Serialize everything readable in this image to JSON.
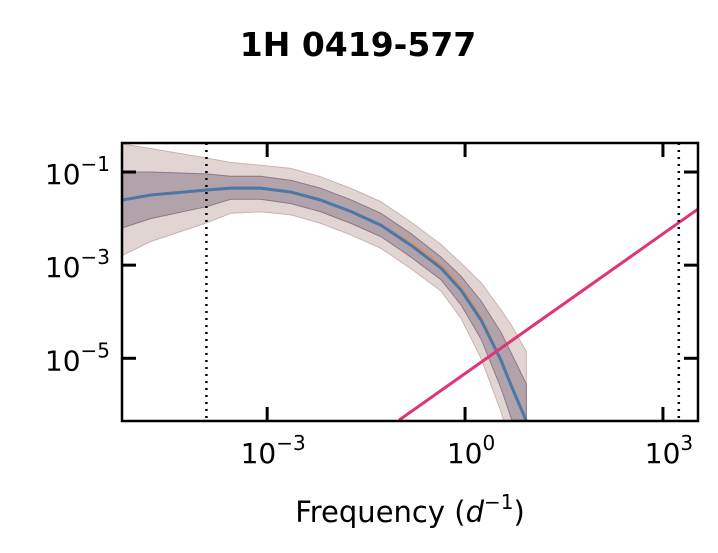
{
  "chart_data": {
    "type": "line",
    "title": "1H 0419-577",
    "xlabel": [
      "Frequency (",
      "d",
      "−1",
      ")"
    ],
    "xscale": "log",
    "yscale": "log",
    "xlim": [
      6.3e-06,
      3400
    ],
    "ylim": [
      4.5e-07,
      0.42
    ],
    "xticks": [
      {
        "value": 0.001,
        "label": "10",
        "exponent": "−3"
      },
      {
        "value": 1,
        "label": "10",
        "exponent": "0"
      },
      {
        "value": 1000,
        "label": "10",
        "exponent": "3"
      }
    ],
    "yticks": [
      {
        "value": 1e-05,
        "label": "10",
        "exponent": "−5"
      },
      {
        "value": 0.001,
        "label": "10",
        "exponent": "−3"
      },
      {
        "value": 0.1,
        "label": "10",
        "exponent": "−1"
      }
    ],
    "x": [
      6.3e-06,
      1.7e-05,
      0.00012,
      0.00028,
      0.00079,
      0.0023,
      0.0065,
      0.019,
      0.053,
      0.15,
      0.43,
      0.87,
      1.75,
      3.5,
      5.0,
      8.5
    ],
    "bands": [
      {
        "color": "#c8b3b1",
        "upper": [
          0.4,
          0.32,
          0.2,
          0.16,
          0.14,
          0.12,
          0.079,
          0.044,
          0.023,
          0.0085,
          0.0028,
          0.0011,
          0.00042,
          0.00011,
          5.2e-05,
          1.4e-05
        ],
        "lower": [
          0.0016,
          0.0032,
          0.0081,
          0.013,
          0.014,
          0.012,
          0.0079,
          0.0044,
          0.0023,
          0.00085,
          0.00028,
          7.2e-05,
          1e-05,
          7.2e-07,
          1.3e-07,
          1.4e-08
        ]
      },
      {
        "color": "#8d7886",
        "upper": [
          0.1,
          0.1,
          0.091,
          0.081,
          0.081,
          0.066,
          0.045,
          0.025,
          0.013,
          0.0048,
          0.0015,
          0.00058,
          0.00017,
          3.6e-05,
          1.3e-05,
          2.8e-06
        ],
        "lower": [
          0.0063,
          0.01,
          0.018,
          0.026,
          0.026,
          0.021,
          0.014,
          0.0078,
          0.0041,
          0.0015,
          0.00049,
          0.00014,
          2.6e-05,
          2.3e-06,
          5.2e-07,
          7.1e-08
        ]
      }
    ],
    "series": [
      {
        "color": "#d9915a",
        "values": [
          0.025,
          0.032,
          0.041,
          0.045,
          0.045,
          0.037,
          0.025,
          0.014,
          0.0072,
          0.003,
          0.00098,
          0.00033,
          7.2e-05,
          9.1e-06,
          2.6e-06,
          4.5e-07
        ]
      },
      {
        "color": "#4a78a8",
        "values": [
          0.025,
          0.032,
          0.041,
          0.045,
          0.045,
          0.037,
          0.025,
          0.014,
          0.0072,
          0.0027,
          0.00087,
          0.00029,
          6.6e-05,
          9.1e-06,
          2.6e-06,
          4.5e-07
        ]
      }
    ],
    "model": {
      "color": "#e0347a",
      "x": [
        0.1,
        3400
      ],
      "values": [
        4.7e-07,
        0.016
      ]
    },
    "vlines": [
      0.00012,
      1740
    ]
  }
}
